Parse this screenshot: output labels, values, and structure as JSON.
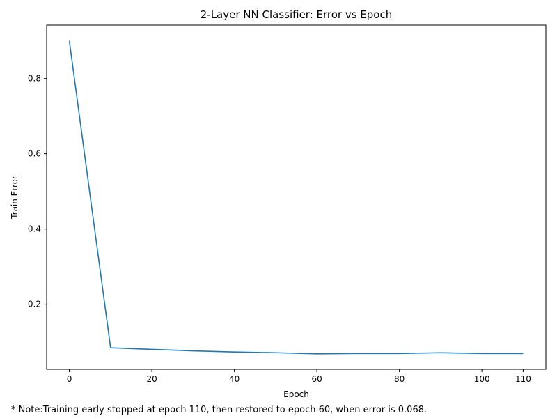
{
  "chart_data": {
    "type": "line",
    "title": "2-Layer NN Classifier: Error vs Epoch",
    "xlabel": "Epoch",
    "ylabel": "Train Error",
    "xlim": [
      -5.5,
      115.5
    ],
    "ylim": [
      0.027,
      0.942
    ],
    "xticks": [
      0,
      20,
      40,
      60,
      80,
      100,
      110
    ],
    "yticks": [
      0.2,
      0.4,
      0.6,
      0.8
    ],
    "grid": false,
    "series": [
      {
        "color": "#1f77b4",
        "x": [
          0,
          10,
          20,
          30,
          40,
          50,
          60,
          70,
          80,
          90,
          100,
          110
        ],
        "y": [
          0.9,
          0.084,
          0.08,
          0.076,
          0.073,
          0.071,
          0.068,
          0.069,
          0.069,
          0.071,
          0.069,
          0.069
        ]
      }
    ]
  },
  "note": "* Note:Training early stopped at epoch 110, then restored to epoch 60, when error is 0.068."
}
